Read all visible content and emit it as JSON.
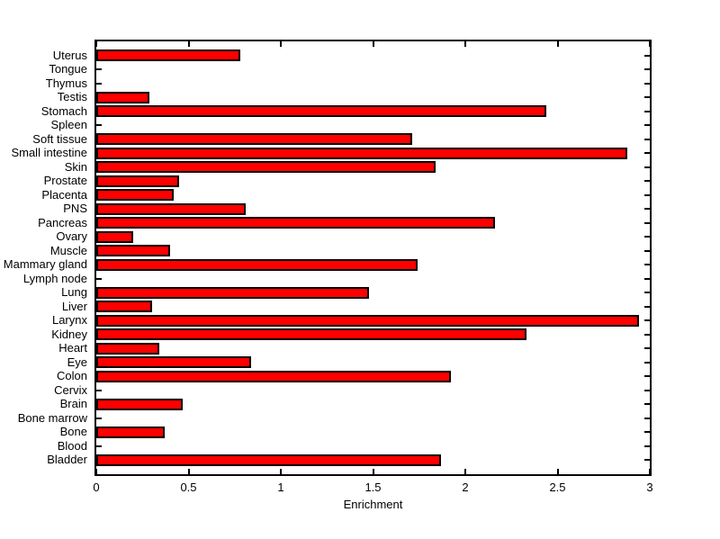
{
  "figure": {
    "colors": {
      "background": "#FFFFFF",
      "bar_fill": "#FF0000",
      "bar_edge": "#000000",
      "axis": "#000000",
      "text": "#000000"
    }
  },
  "chart_data": {
    "type": "bar",
    "orientation": "horizontal",
    "title": "",
    "xlabel": "Enrichment",
    "ylabel": "",
    "xlim": [
      0,
      3
    ],
    "xtick_values": [
      0,
      0.5,
      1,
      1.5,
      2,
      2.5,
      3
    ],
    "xtick_labels": [
      "0",
      "0.5",
      "1",
      "1.5",
      "2",
      "2.5",
      "3"
    ],
    "grid": false,
    "legend": null,
    "bar_style": "red fill, black edge, MATLAB-style box axes with inward ticks",
    "categories": [
      "Uterus",
      "Tongue",
      "Thymus",
      "Testis",
      "Stomach",
      "Spleen",
      "Soft tissue",
      "Small intestine",
      "Skin",
      "Prostate",
      "Placenta",
      "PNS",
      "Pancreas",
      "Ovary",
      "Muscle",
      "Mammary gland",
      "Lymph node",
      "Lung",
      "Liver",
      "Larynx",
      "Kidney",
      "Heart",
      "Eye",
      "Colon",
      "Cervix",
      "Brain",
      "Bone marrow",
      "Bone",
      "Blood",
      "Bladder"
    ],
    "values": [
      0.78,
      0,
      0,
      0.29,
      2.44,
      0,
      1.71,
      2.88,
      1.84,
      0.45,
      0.42,
      0.81,
      2.16,
      0.2,
      0.4,
      1.74,
      0,
      1.48,
      0.3,
      2.94,
      2.33,
      0.34,
      0.84,
      1.92,
      0,
      0.47,
      0,
      0.37,
      0,
      1.87
    ]
  }
}
